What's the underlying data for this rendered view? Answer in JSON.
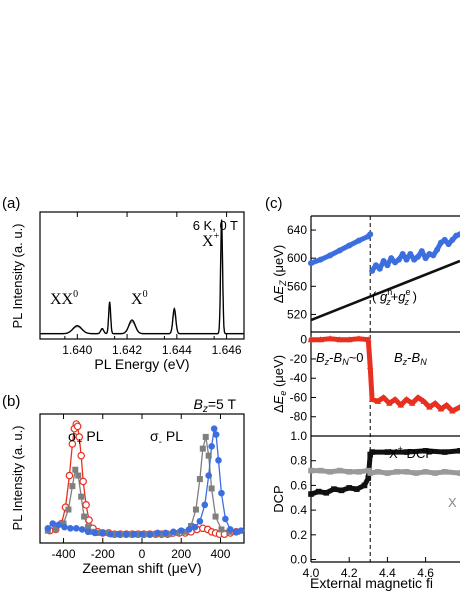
{
  "colors": {
    "blue": "#3d6ee0",
    "red": "#e83020",
    "gray": "#7f7f7f",
    "black": "#111111",
    "light_gray": "#9a9a9a"
  },
  "panel_a": {
    "label": "(a)",
    "annotation": "6 K, 0 T",
    "peak_labels": {
      "xx0": "XX",
      "xx0_sup": "0",
      "x0": "X",
      "x0_sup": "0",
      "xp": "X",
      "xp_sup": "+"
    }
  },
  "panel_b": {
    "label": "(b)",
    "field_label": {
      "b": "B",
      "sub": "z",
      "rest": "=5 T"
    },
    "sigma_plus": {
      "s": "σ",
      "sub": "+",
      "rest": " PL"
    },
    "sigma_minus": {
      "s": "σ",
      "sub": "-",
      "rest": " PL"
    }
  },
  "panel_c": {
    "label": "(c)",
    "formula": {
      "open": "( ",
      "g1": "g",
      "sup1": "h",
      "sub1": "z",
      "plus": "+",
      "g2": "g",
      "sup2": "e",
      "sub2": "z",
      "close": " )"
    },
    "region_left": {
      "b": "B",
      "sub1": "z",
      "dash": "-",
      "bn": "B",
      "sub2": "N",
      "rest": "~0"
    },
    "region_right": {
      "b": "B",
      "sub1": "z",
      "dash": "-",
      "bn": "B",
      "sub2": "N"
    },
    "dcp_label_xp": {
      "x": "X",
      "sup": "+",
      "rest": " DCP"
    },
    "dcp_label_x0": "X",
    "vline_x": 4.31
  },
  "chart_data": [
    {
      "type": "line",
      "title": "6 K, 0 T",
      "xlabel": "PL Energy (eV)",
      "ylabel": "PL Intensity (a. u.)",
      "xlim": [
        1.6385,
        1.6467
      ],
      "ylim": [
        0,
        1.05
      ],
      "xticks": [
        "1.640",
        "1.642",
        "1.644",
        "1.646"
      ],
      "peaks": [
        {
          "x": 1.64,
          "height": 0.07,
          "width": 0.00018
        },
        {
          "x": 1.641,
          "height": 0.045,
          "width": 6e-05
        },
        {
          "x": 1.6413,
          "height": 0.28,
          "width": 4e-05
        },
        {
          "x": 1.6422,
          "height": 0.12,
          "width": 0.00013
        },
        {
          "x": 1.6439,
          "height": 0.22,
          "width": 6e-05
        },
        {
          "x": 1.6458,
          "height": 1.0,
          "width": 4e-05
        }
      ]
    },
    {
      "type": "scatter",
      "xlabel": "Zeeman shift (μeV)",
      "ylabel": "PL Intensity (a. u.)",
      "xlim": [
        -520,
        520
      ],
      "ylim": [
        0,
        1.05
      ],
      "xticks": [
        "-400",
        "-200",
        "0",
        "200",
        "400"
      ],
      "series": [
        {
          "color": "red",
          "marker": "open-circle",
          "x": [
            -470,
            -440,
            -410,
            -390,
            -370,
            -355,
            -345,
            -335,
            -328,
            -320,
            -310,
            -300,
            -285,
            -270,
            -250,
            -225,
            -200,
            -170,
            -140,
            -110,
            -80,
            -50,
            -20,
            10,
            40,
            70,
            100,
            130,
            160,
            190,
            220,
            250,
            280,
            310,
            335,
            355,
            375,
            395,
            420,
            450,
            480
          ],
          "y": [
            0.08,
            0.09,
            0.14,
            0.28,
            0.55,
            0.82,
            0.95,
            0.99,
            0.97,
            0.88,
            0.72,
            0.5,
            0.3,
            0.17,
            0.1,
            0.07,
            0.06,
            0.06,
            0.05,
            0.05,
            0.05,
            0.05,
            0.05,
            0.05,
            0.05,
            0.05,
            0.05,
            0.05,
            0.06,
            0.06,
            0.06,
            0.07,
            0.09,
            0.1,
            0.09,
            0.07,
            0.06,
            0.05,
            0.05,
            0.06,
            0.07
          ]
        },
        {
          "color": "gray",
          "marker": "filled-square",
          "x": [
            -480,
            -440,
            -400,
            -375,
            -355,
            -340,
            -325,
            -310,
            -295,
            -275,
            -250,
            -220,
            -180,
            -140,
            -100,
            -60,
            -20,
            20,
            60,
            100,
            140,
            180,
            220,
            250,
            275,
            295,
            310,
            325,
            340,
            355,
            375,
            405,
            445,
            485
          ],
          "y": [
            0.08,
            0.09,
            0.14,
            0.26,
            0.46,
            0.6,
            0.55,
            0.37,
            0.2,
            0.11,
            0.07,
            0.06,
            0.06,
            0.05,
            0.05,
            0.05,
            0.05,
            0.05,
            0.05,
            0.05,
            0.05,
            0.06,
            0.07,
            0.12,
            0.26,
            0.52,
            0.78,
            0.88,
            0.72,
            0.44,
            0.2,
            0.09,
            0.07,
            0.07
          ]
        },
        {
          "color": "blue",
          "marker": "filled-circle",
          "x": [
            -480,
            -455,
            -425,
            -395,
            -365,
            -335,
            -305,
            -275,
            -240,
            -200,
            -160,
            -120,
            -80,
            -40,
            0,
            40,
            80,
            120,
            160,
            200,
            240,
            270,
            295,
            320,
            340,
            355,
            368,
            378,
            390,
            405,
            425,
            450,
            480,
            505
          ],
          "y": [
            0.1,
            0.14,
            0.13,
            0.11,
            0.1,
            0.1,
            0.09,
            0.07,
            0.06,
            0.06,
            0.05,
            0.05,
            0.05,
            0.05,
            0.05,
            0.05,
            0.06,
            0.06,
            0.07,
            0.08,
            0.09,
            0.11,
            0.16,
            0.3,
            0.55,
            0.8,
            0.95,
            0.9,
            0.68,
            0.4,
            0.18,
            0.09,
            0.07,
            0.08
          ]
        }
      ]
    },
    {
      "type": "scatter",
      "ylabel": "ΔE_Z (μeV)",
      "xlim": [
        4.0,
        4.78
      ],
      "ylim": [
        495,
        660
      ],
      "yticks": [
        "520",
        "560",
        "600",
        "640"
      ],
      "series": [
        {
          "color": "blue",
          "marker": "filled-circle",
          "x": [
            4.0,
            4.05,
            4.1,
            4.15,
            4.2,
            4.25,
            4.3,
            4.31,
            4.32,
            4.34,
            4.36,
            4.38,
            4.4,
            4.42,
            4.44,
            4.46,
            4.48,
            4.5,
            4.52,
            4.54,
            4.56,
            4.58,
            4.6,
            4.62,
            4.64,
            4.66,
            4.68,
            4.7,
            4.72,
            4.74,
            4.76,
            4.78
          ],
          "y": [
            593,
            598,
            604,
            611,
            618,
            625,
            631,
            634,
            582,
            590,
            585,
            596,
            590,
            600,
            594,
            598,
            606,
            598,
            606,
            598,
            602,
            610,
            600,
            606,
            604,
            612,
            622,
            626,
            620,
            626,
            632,
            634
          ]
        },
        {
          "color": "black",
          "marker": "line",
          "x": [
            4.0,
            4.78
          ],
          "y": [
            512,
            596
          ]
        }
      ]
    },
    {
      "type": "scatter",
      "ylabel": "ΔE_e (μeV)",
      "xlim": [
        4.0,
        4.78
      ],
      "ylim": [
        -100,
        8
      ],
      "yticks": [
        "0",
        "-20",
        "-40",
        "-60",
        "-80"
      ],
      "series": [
        {
          "color": "red",
          "marker": "filled-triangle",
          "x": [
            4.0,
            4.05,
            4.1,
            4.15,
            4.2,
            4.25,
            4.3,
            4.31,
            4.32,
            4.35,
            4.38,
            4.41,
            4.44,
            4.47,
            4.5,
            4.53,
            4.56,
            4.59,
            4.62,
            4.65,
            4.68,
            4.71,
            4.74,
            4.78
          ],
          "y": [
            0,
            0,
            1,
            0,
            0,
            1,
            0,
            -28,
            -62,
            -64,
            -60,
            -66,
            -62,
            -68,
            -62,
            -66,
            -60,
            -64,
            -70,
            -66,
            -72,
            -68,
            -74,
            -70
          ]
        }
      ]
    },
    {
      "type": "line",
      "xlabel": "External magnetic fi",
      "ylabel": "DCP",
      "xlim": [
        4.0,
        4.78
      ],
      "ylim": [
        -0.02,
        1.0
      ],
      "xticks": [
        "4.0",
        "4.2",
        "4.4",
        "4.6"
      ],
      "yticks": [
        "0.0",
        "0.2",
        "0.4",
        "0.6",
        "0.8",
        "1.0"
      ],
      "series": [
        {
          "name": "X+ DCP",
          "color": "black",
          "marker": "filled-square",
          "x": [
            4.0,
            4.04,
            4.08,
            4.12,
            4.16,
            4.2,
            4.24,
            4.28,
            4.3,
            4.31,
            4.32,
            4.4,
            4.5,
            4.6,
            4.7,
            4.78
          ],
          "y": [
            0.53,
            0.55,
            0.54,
            0.57,
            0.56,
            0.58,
            0.57,
            0.6,
            0.66,
            0.85,
            0.87,
            0.87,
            0.87,
            0.88,
            0.87,
            0.88
          ]
        },
        {
          "color": "light_gray",
          "marker": "filled-square",
          "x": [
            4.0,
            4.05,
            4.1,
            4.15,
            4.2,
            4.25,
            4.3,
            4.31,
            4.35,
            4.4,
            4.45,
            4.5,
            4.55,
            4.6,
            4.65,
            4.7,
            4.78
          ],
          "y": [
            0.72,
            0.72,
            0.71,
            0.72,
            0.71,
            0.71,
            0.72,
            0.7,
            0.71,
            0.7,
            0.71,
            0.71,
            0.7,
            0.71,
            0.7,
            0.71,
            0.7
          ]
        }
      ]
    }
  ]
}
